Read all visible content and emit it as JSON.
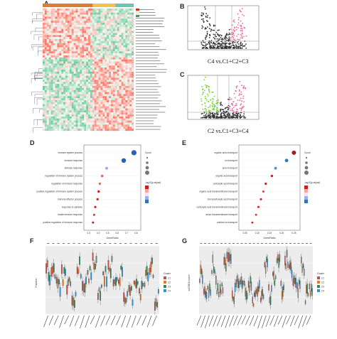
{
  "panels": {
    "a": {
      "label": "A"
    },
    "b": {
      "label": "B",
      "caption": "C4 vs.C1+C2+C3"
    },
    "c": {
      "label": "C",
      "caption": "C2 vs.C1+C3+C4"
    },
    "d": {
      "label": "D",
      "terms": [
        "immune system process",
        "immune response",
        "defense response",
        "regulation of immune system process",
        "regulation of immune response",
        "positive regulation of immune system process",
        "immune effector process",
        "response to cytokine",
        "innate immune response",
        "positive regulation of immune response"
      ],
      "xlabel": "GeneRatio",
      "xticks": [
        "0.3",
        "0.4",
        "0.5",
        "0.6",
        "0.7",
        "0.8"
      ],
      "count_label": "Count",
      "padj_label": "-log10(p.adjust)"
    },
    "e": {
      "label": "E",
      "terms": [
        "organic anion transport",
        "ion transport",
        "anion transport",
        "organic acid transport",
        "carboxylic acid transport",
        "organic acid transmembrane transport",
        "monocarboxylic acid transport",
        "carboxylic acid transmembrane transport",
        "anion transmembrane transport",
        "sodium ion transport"
      ],
      "xlabel": "GeneRatio",
      "xticks": [
        "0.05",
        "0.10",
        "0.15",
        "0.20",
        "0.25"
      ],
      "count_label": "Count",
      "padj_label": "-log10(p.adjust)"
    },
    "f": {
      "label": "F",
      "ylabel": "Fraction",
      "legend_title": "Cluster",
      "legend": [
        "C1",
        "C2",
        "C3",
        "C4"
      ]
    },
    "g": {
      "label": "G",
      "ylabel": "ssGSEA score",
      "legend_title": "Cluster",
      "legend": [
        "C1",
        "C2",
        "C3",
        "C4"
      ]
    }
  },
  "colors": {
    "c1": "#c0504d",
    "c2": "#e07b30",
    "c3": "#2e8b57",
    "c4": "#3d8fd6",
    "heat_high": "#d73027",
    "heat_low": "#1a9850"
  }
}
